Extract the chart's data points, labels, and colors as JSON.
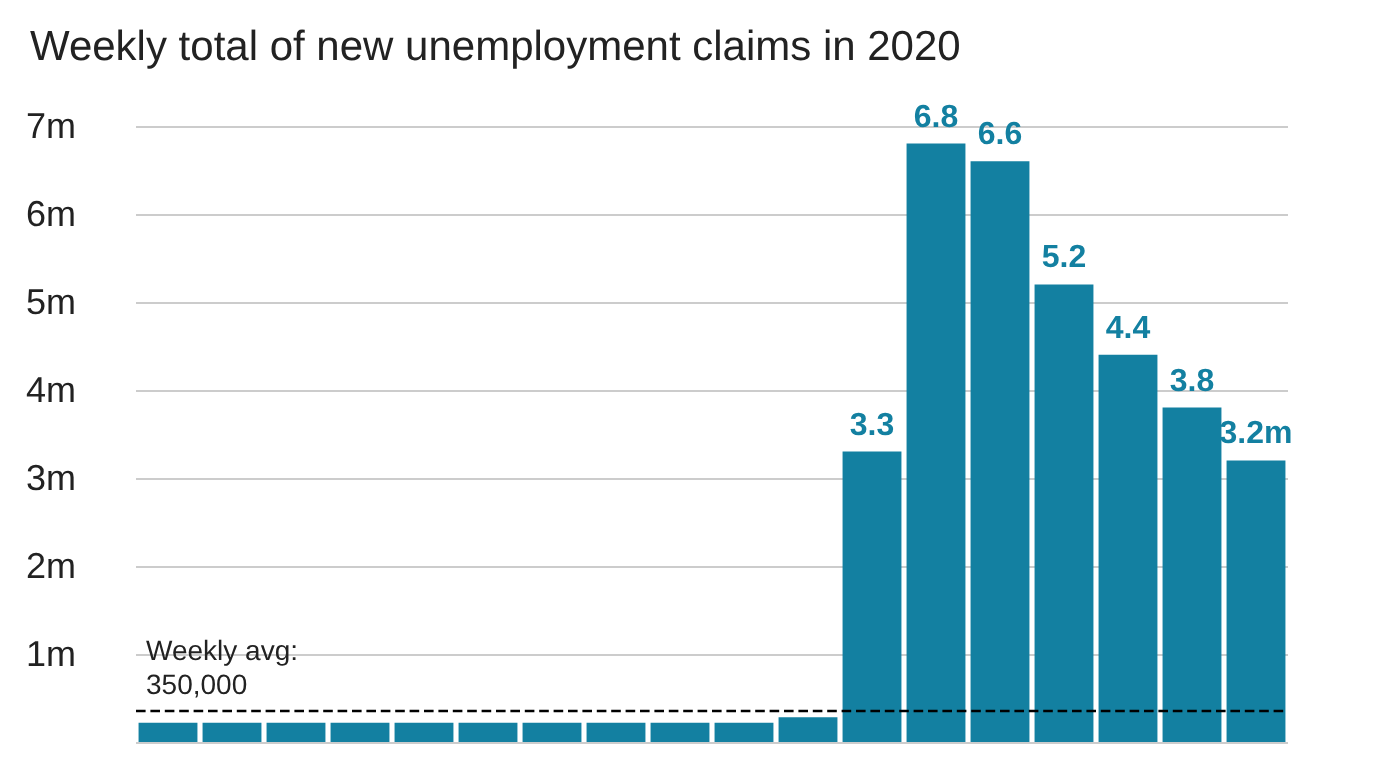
{
  "chart_data": {
    "type": "bar",
    "title": "Weekly total of new unemployment claims in 2020",
    "categories": [
      null,
      null,
      null,
      null,
      null,
      null,
      null,
      null,
      null,
      null,
      null,
      null,
      null,
      null,
      null,
      null,
      null,
      null
    ],
    "values": [
      0.22,
      0.22,
      0.22,
      0.22,
      0.22,
      0.22,
      0.22,
      0.22,
      0.22,
      0.22,
      0.28,
      3.3,
      6.8,
      6.6,
      5.2,
      4.4,
      3.8,
      3.2
    ],
    "value_labels": [
      null,
      null,
      null,
      null,
      null,
      null,
      null,
      null,
      null,
      null,
      null,
      "3.3",
      "6.8",
      "6.6",
      "5.2",
      "4.4",
      "3.8",
      "3.2m"
    ],
    "color": "#1380a1",
    "ylim": [
      0,
      7
    ],
    "yticks": [
      {
        "value": 1,
        "label": "1m"
      },
      {
        "value": 2,
        "label": "2m"
      },
      {
        "value": 3,
        "label": "3m"
      },
      {
        "value": 4,
        "label": "4m"
      },
      {
        "value": 5,
        "label": "5m"
      },
      {
        "value": 6,
        "label": "6m"
      },
      {
        "value": 7,
        "label": "7m"
      }
    ],
    "ref_lines": [
      {
        "axis": "y",
        "value": 0.35,
        "label": "Weekly avg:\n350,000",
        "color": "#000000",
        "line_style": "dashed"
      }
    ],
    "grid": "y"
  }
}
